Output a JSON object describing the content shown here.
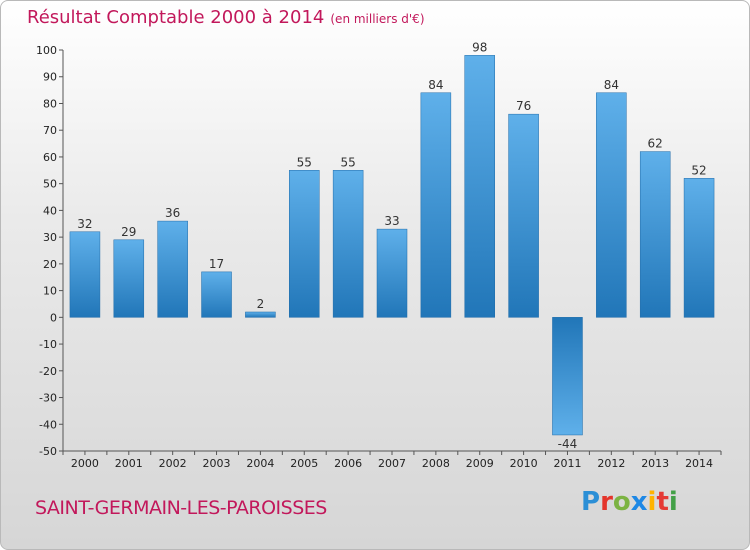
{
  "title": "Résultat Comptable 2000 à 2014",
  "unit": "(en milliers d'€)",
  "commune": "SAINT-GERMAIN-LES-PAROISSES",
  "logo_text": "Proxiti",
  "chart_data": {
    "type": "bar",
    "title": "Résultat Comptable 2000 à 2014",
    "subtitle": "(en milliers d'€)",
    "xlabel": "",
    "ylabel": "",
    "categories": [
      "2000",
      "2001",
      "2002",
      "2003",
      "2004",
      "2005",
      "2006",
      "2007",
      "2008",
      "2009",
      "2010",
      "2011",
      "2012",
      "2013",
      "2014"
    ],
    "values": [
      32,
      29,
      36,
      17,
      2,
      55,
      55,
      33,
      84,
      98,
      76,
      -44,
      84,
      62,
      52
    ],
    "ylim": [
      -50,
      100
    ],
    "yticks": [
      100,
      90,
      80,
      70,
      60,
      50,
      40,
      30,
      20,
      10,
      0,
      -10,
      -20,
      -30,
      -40,
      -50
    ],
    "grid": false,
    "colors": {
      "bar_light": "#5fb0ea",
      "bar_dark": "#2176b8",
      "title": "#c2185b"
    }
  }
}
